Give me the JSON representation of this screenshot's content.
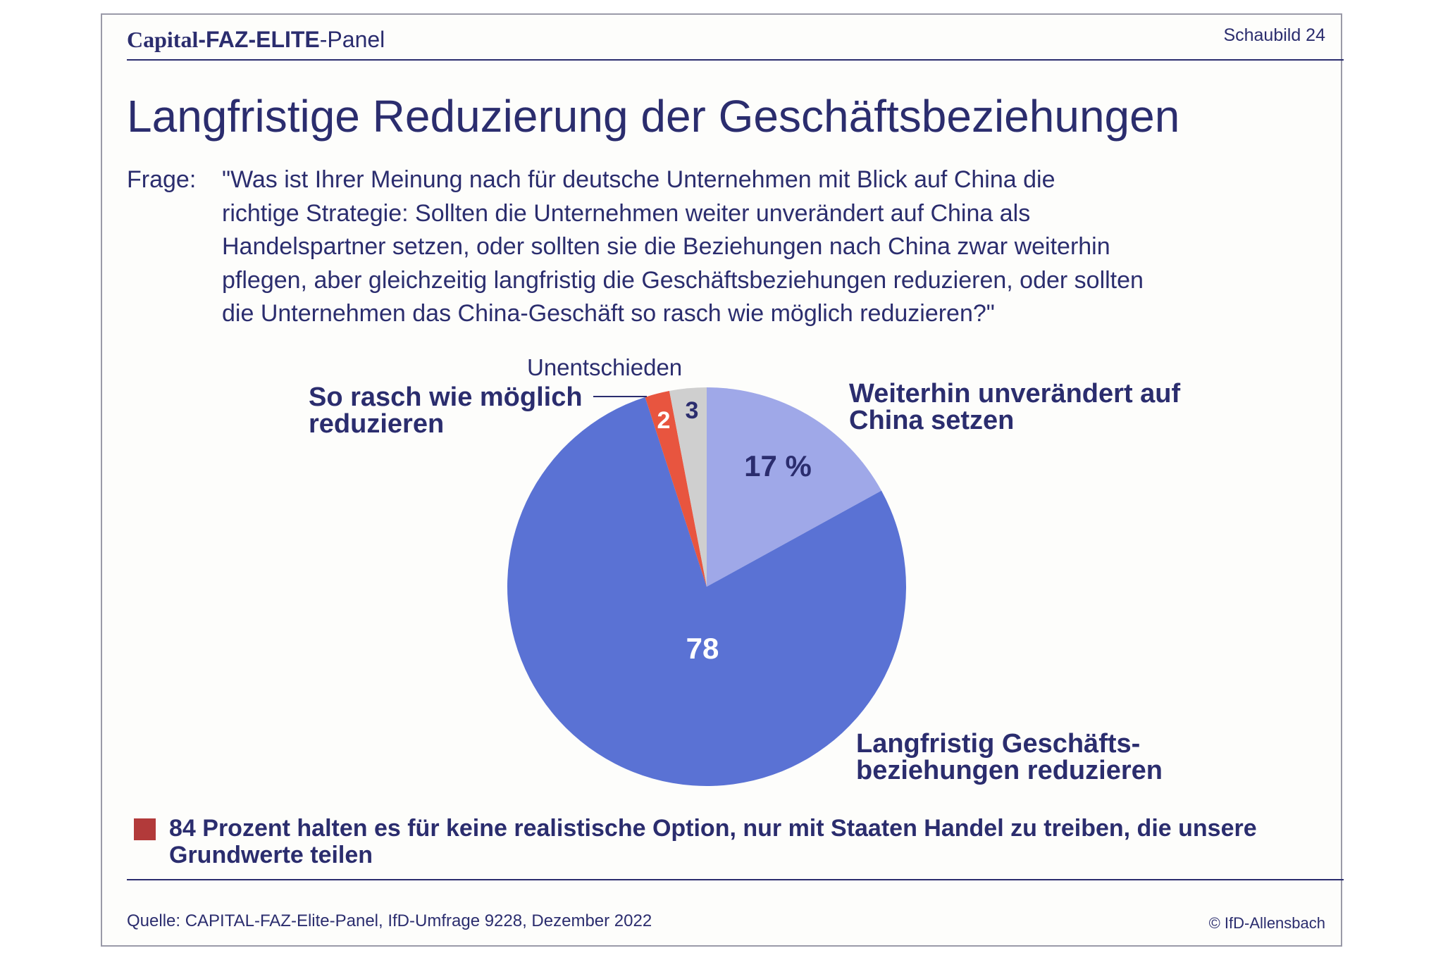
{
  "header": {
    "brand": "Capital",
    "panel_bold": "-FAZ-ELITE",
    "panel_suffix": "-Panel",
    "figure_number": "Schaubild 24"
  },
  "title": "Langfristige Reduzierung der Geschäftsbeziehungen",
  "question": {
    "label": "Frage:",
    "lines": [
      "\"Was ist Ihrer Meinung nach für deutsche Unternehmen mit Blick auf China die",
      "richtige Strategie: Sollten die Unternehmen weiter unverändert auf China als",
      "Handelspartner setzen, oder sollten sie die Beziehungen nach China zwar weiterhin",
      "pflegen, aber gleichzeitig langfristig die Geschäftsbeziehungen reduzieren, oder sollten",
      "die Unternehmen das China-Geschäft so rasch wie möglich reduzieren?\""
    ]
  },
  "chart_data": {
    "type": "pie",
    "start_angle_deg": 0,
    "direction": "clockwise",
    "slices": [
      {
        "label_lines": [
          "Weiterhin unverändert auf",
          "China setzen"
        ],
        "value": 17,
        "value_label": "17 %",
        "color": "#9fa8e8",
        "value_label_color": "#2b2d6e"
      },
      {
        "label_lines": [
          "Langfristig Geschäfts-",
          "beziehungen reduzieren"
        ],
        "value": 78,
        "value_label": "78",
        "color": "#5a72d4",
        "value_label_color": "#ffffff"
      },
      {
        "label_lines": [
          "So rasch wie möglich",
          "reduzieren"
        ],
        "value": 2,
        "value_label": "2",
        "color": "#e8553f",
        "value_label_color": "#ffffff"
      },
      {
        "label_lines": [
          "Unentschieden"
        ],
        "value": 3,
        "value_label": "3",
        "color": "#cfcfcf",
        "value_label_color": "#2b2d6e"
      }
    ]
  },
  "note": "84 Prozent halten es für keine realistische Option, nur mit Staaten Handel zu treiben, die unsere Grundwerte teilen",
  "footer": {
    "source": "Quelle: CAPITAL-FAZ-Elite-Panel, IfD-Umfrage 9228, Dezember 2022",
    "copyright": "© IfD-Allensbach"
  },
  "colors": {
    "text": "#2b2d6e",
    "note_marker": "#b23a3a"
  }
}
